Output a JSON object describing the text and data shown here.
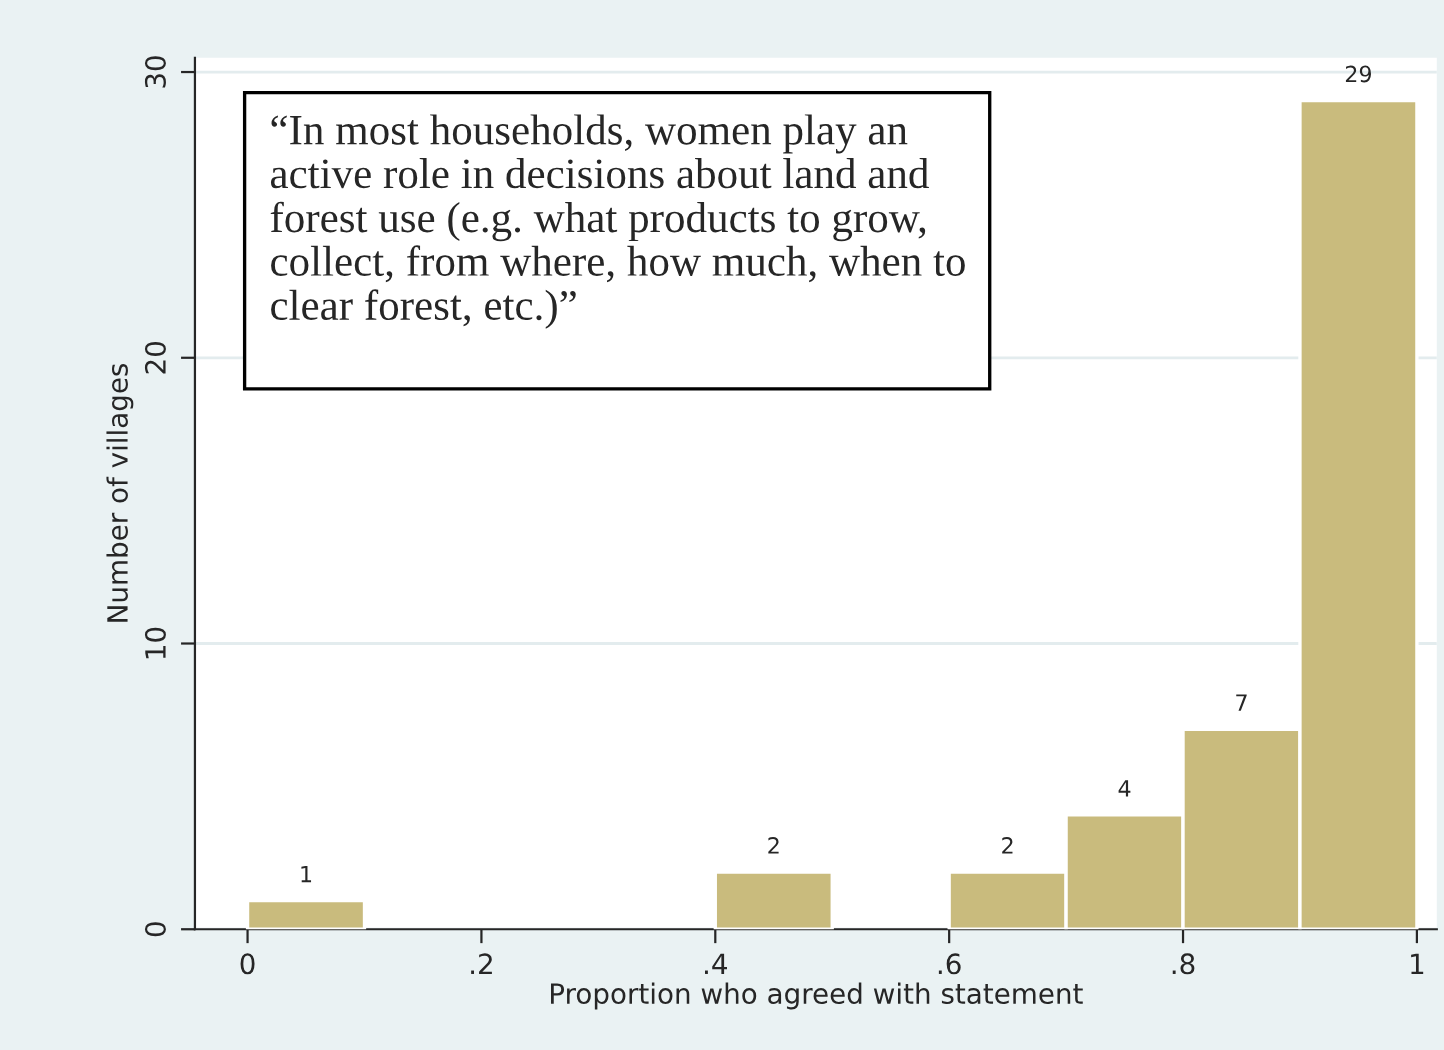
{
  "chart_data": {
    "type": "histogram",
    "xlabel": "Proportion who agreed with statement",
    "ylabel": "Number of villages",
    "bins": [
      0,
      0.1,
      0.2,
      0.3,
      0.4,
      0.5,
      0.6,
      0.7,
      0.8,
      0.9,
      1.0
    ],
    "values": [
      1,
      0,
      0,
      0,
      2,
      0,
      2,
      4,
      7,
      29
    ],
    "value_labels": [
      "1",
      null,
      null,
      null,
      "2",
      null,
      "2",
      "4",
      "7",
      "29"
    ],
    "color": "#c9bb7d",
    "xlim": [
      -0.045,
      1.017
    ],
    "ylim": [
      0,
      30.5
    ],
    "xticks": [
      0,
      {
        "value": 0.2,
        "label": ".2"
      },
      {
        "value": 0.4,
        "label": ".4"
      },
      {
        "value": 0.6,
        "label": ".6"
      },
      {
        "value": 0.8,
        "label": ".8"
      },
      1
    ],
    "yticks": [
      0,
      10,
      20,
      30
    ],
    "grid": "y",
    "annotations": [
      "“In most households, women play an active role in decisions about land and forest use (e.g. what products to grow, collect, from where, how much, when to clear forest, etc.)”"
    ]
  }
}
